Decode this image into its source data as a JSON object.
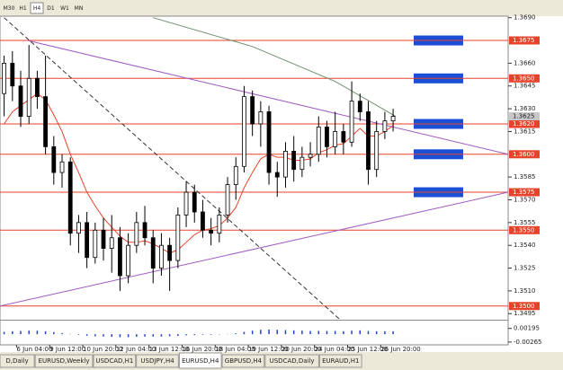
{
  "toolbar": [
    "M30",
    "H1",
    "H4",
    "D1",
    "W1",
    "MN"
  ],
  "active_timeframe": 2,
  "tabs": [
    "D,Daily",
    "EURUSD,Weekly",
    "USDCAD,H1",
    "USDJPY,H4",
    "EURUSD,H4",
    "GBPUSD,H4",
    "USDCAD,Daily",
    "EURAUD,H1"
  ],
  "active_tab": 4,
  "chart_data": {
    "type": "candlestick",
    "open": [
      1.364,
      1.366,
      1.3645,
      1.3625,
      1.365,
      1.3638,
      1.3605,
      1.3588,
      1.3595,
      1.3548,
      1.3555,
      1.3532,
      1.355,
      1.3538,
      1.3545,
      1.352,
      1.354,
      1.3555,
      1.3545,
      1.3525,
      1.354,
      1.353,
      1.356,
      1.3575,
      1.3562,
      1.355,
      1.3548,
      1.356,
      1.358,
      1.3592,
      1.3638,
      1.362,
      1.3628,
      1.3588,
      1.3585,
      1.3602,
      1.359,
      1.3598,
      1.36,
      1.3618,
      1.3605,
      1.3615,
      1.3608,
      1.3635,
      1.3628,
      1.359,
      1.3615,
      1.3622
    ],
    "high": [
      1.3665,
      1.3668,
      1.3655,
      1.3672,
      1.3655,
      1.3665,
      1.3612,
      1.36,
      1.3598,
      1.356,
      1.3562,
      1.3555,
      1.3558,
      1.356,
      1.3552,
      1.3548,
      1.3562,
      1.3566,
      1.355,
      1.3548,
      1.3545,
      1.3565,
      1.3582,
      1.358,
      1.357,
      1.3558,
      1.3565,
      1.3585,
      1.3598,
      1.3645,
      1.3642,
      1.3635,
      1.3632,
      1.3595,
      1.3608,
      1.3612,
      1.3605,
      1.3608,
      1.3625,
      1.3622,
      1.3628,
      1.362,
      1.3648,
      1.364,
      1.3635,
      1.3622,
      1.3628,
      1.363
    ],
    "low": [
      1.3625,
      1.3635,
      1.3618,
      1.362,
      1.363,
      1.36,
      1.358,
      1.3578,
      1.354,
      1.3535,
      1.3525,
      1.3528,
      1.353,
      1.3522,
      1.351,
      1.3515,
      1.3535,
      1.354,
      1.3515,
      1.352,
      1.351,
      1.3525,
      1.3552,
      1.3555,
      1.3545,
      1.354,
      1.3542,
      1.3555,
      1.357,
      1.3588,
      1.3612,
      1.3605,
      1.358,
      1.3572,
      1.3578,
      1.3582,
      1.3585,
      1.3592,
      1.3595,
      1.3598,
      1.36,
      1.36,
      1.3605,
      1.3622,
      1.358,
      1.3585,
      1.361,
      1.3615
    ],
    "close": [
      1.366,
      1.3645,
      1.3625,
      1.365,
      1.3638,
      1.3605,
      1.3588,
      1.3595,
      1.3548,
      1.3555,
      1.3532,
      1.355,
      1.3538,
      1.3545,
      1.352,
      1.354,
      1.3555,
      1.3545,
      1.3525,
      1.354,
      1.353,
      1.356,
      1.3575,
      1.3562,
      1.355,
      1.3548,
      1.356,
      1.358,
      1.3592,
      1.3638,
      1.362,
      1.3628,
      1.3588,
      1.3585,
      1.3602,
      1.359,
      1.3598,
      1.36,
      1.3618,
      1.3605,
      1.3615,
      1.3608,
      1.3635,
      1.3628,
      1.359,
      1.3615,
      1.3622,
      1.3625
    ],
    "ma": {
      "color": "#e8432a",
      "values": [
        1.362,
        1.3628,
        1.3632,
        1.3636,
        1.364,
        1.3636,
        1.3626,
        1.3615,
        1.36,
        1.3588,
        1.3575,
        1.3566,
        1.3558,
        1.3552,
        1.3546,
        1.3542,
        1.3542,
        1.3543,
        1.3541,
        1.3538,
        1.3535,
        1.3537,
        1.3542,
        1.3547,
        1.355,
        1.3551,
        1.3553,
        1.3558,
        1.3565,
        1.3578,
        1.3588,
        1.3597,
        1.36,
        1.3598,
        1.3598,
        1.3596,
        1.3596,
        1.3597,
        1.3601,
        1.3603,
        1.3606,
        1.3607,
        1.3612,
        1.3617,
        1.3612,
        1.3612,
        1.3615,
        1.3619
      ]
    },
    "lines": [
      {
        "color": "#a05bc0",
        "dash": false,
        "points": [
          [
            2.8,
            1.3675
          ],
          [
            60.9,
            1.36
          ]
        ]
      },
      {
        "color": "#a05bc0",
        "dash": false,
        "points": [
          [
            -0.5,
            1.35
          ],
          [
            60.9,
            1.3575
          ]
        ]
      },
      {
        "color": "#333333",
        "dash": true,
        "points": [
          [
            0,
            1.369
          ],
          [
            40.6,
            1.3491
          ]
        ]
      },
      {
        "color": "#6e8f6e",
        "dash": false,
        "points": [
          [
            18,
            1.369
          ],
          [
            30,
            1.3671
          ],
          [
            40,
            1.3648
          ],
          [
            47.3,
            1.3625
          ]
        ]
      }
    ],
    "levels": [
      {
        "value": 1.3675,
        "label": "1.3675"
      },
      {
        "value": 1.365,
        "label": "1.3650"
      },
      {
        "value": 1.362,
        "label": "1.3620"
      },
      {
        "value": 1.36,
        "label": "1.3600"
      },
      {
        "value": 1.3575,
        "label": "1.3575"
      },
      {
        "value": 1.355,
        "label": "1.3550"
      },
      {
        "value": 1.35,
        "label": "1.3500"
      }
    ],
    "level_color": "#e8432a",
    "zones": [
      1.3675,
      1.365,
      1.362,
      1.36,
      1.3575
    ],
    "zone_color": "#1a4fd6",
    "last_price": {
      "value": 1.3625,
      "label": "1.3625"
    },
    "xlim": [
      -0.5,
      60.9
    ],
    "xticks": [
      {
        "value": 1.5,
        "label": "6 Jun 04:00"
      },
      {
        "value": 5.5,
        "label": "9 Jun 12:00"
      },
      {
        "value": 9.5,
        "label": "10 Jun 20:00"
      },
      {
        "value": 13.5,
        "label": "12 Jun 04:00"
      },
      {
        "value": 17.5,
        "label": "13 Jun 12:00"
      },
      {
        "value": 21.5,
        "label": "16 Jun 20:00"
      },
      {
        "value": 25.5,
        "label": "18 Jun 04:00"
      },
      {
        "value": 29.5,
        "label": "19 Jun 12:00"
      },
      {
        "value": 33.5,
        "label": "20 Jun 20:00"
      },
      {
        "value": 37.5,
        "label": "24 Jun 04:00"
      },
      {
        "value": 41.5,
        "label": "25 Jun 12:00"
      },
      {
        "value": 45.5,
        "label": "26 Jun 20:00"
      }
    ],
    "ylim": [
      1.3491,
      1.3691
    ],
    "yticks": [
      {
        "value": 1.369,
        "label": "1.3690"
      },
      {
        "value": 1.366,
        "label": "1.3660"
      },
      {
        "value": 1.3645,
        "label": "1.3645"
      },
      {
        "value": 1.363,
        "label": "1.3630"
      },
      {
        "value": 1.3615,
        "label": "1.3615"
      },
      {
        "value": 1.3585,
        "label": "1.3585"
      },
      {
        "value": 1.357,
        "label": "1.3570"
      },
      {
        "value": 1.3555,
        "label": "1.3555"
      },
      {
        "value": 1.354,
        "label": "1.3540"
      },
      {
        "value": 1.3525,
        "label": "1.3525"
      },
      {
        "value": 1.351,
        "label": "1.3510"
      },
      {
        "value": 1.3495,
        "label": "1.3495"
      }
    ],
    "indicator": {
      "color": "#2244cc",
      "values": [
        0.0008,
        0.001,
        0.0011,
        0.0012,
        0.0012,
        0.001,
        0.0007,
        0.0004,
        0.0001,
        -0.0002,
        -0.0005,
        -0.0007,
        -0.0008,
        -0.0009,
        -0.001,
        -0.001,
        -0.0009,
        -0.0008,
        -0.0008,
        -0.0008,
        -0.0007,
        -0.0006,
        -0.0004,
        -0.0003,
        -0.0002,
        -0.0002,
        -0.0001,
        0.0001,
        0.0003,
        0.0008,
        0.0012,
        0.0015,
        0.0016,
        0.0015,
        0.0014,
        0.0013,
        0.0012,
        0.0011,
        0.0011,
        0.0011,
        0.0011,
        0.001,
        0.0012,
        0.0013,
        0.0011,
        0.001,
        0.001,
        0.001
      ],
      "ylim": [
        -0.0036,
        0.0046
      ],
      "yticks": [
        0.00195,
        -0.00265
      ]
    }
  }
}
